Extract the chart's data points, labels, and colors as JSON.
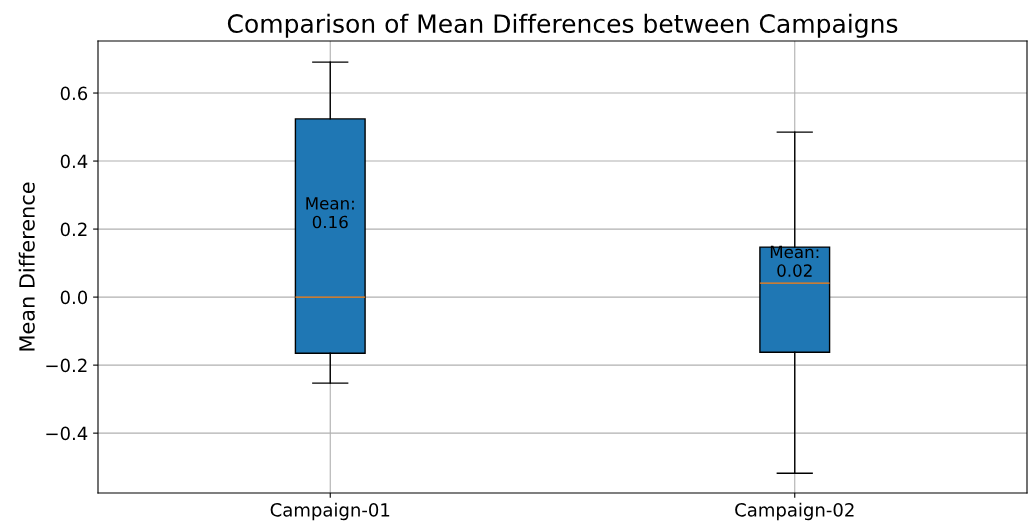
{
  "chart_data": {
    "type": "box",
    "title": "Comparison of Mean Differences between Campaigns",
    "ylabel": "Mean Difference",
    "categories": [
      "Campaign-01",
      "Campaign-02"
    ],
    "boxes": [
      {
        "low": -0.253,
        "q1": -0.165,
        "median": 0.0,
        "q3": 0.524,
        "high": 0.691
      },
      {
        "low": -0.518,
        "q1": -0.162,
        "median": 0.041,
        "q3": 0.147,
        "high": 0.485
      }
    ],
    "color": "#1f77b4",
    "ylim": [
      -0.576,
      0.753
    ],
    "yticks": [
      {
        "value": -0.4,
        "label": "−0.4"
      },
      {
        "value": -0.2,
        "label": "−0.2"
      },
      {
        "value": 0.0,
        "label": "0.0"
      },
      {
        "value": 0.2,
        "label": "0.2"
      },
      {
        "value": 0.4,
        "label": "0.4"
      },
      {
        "value": 0.6,
        "label": "0.6"
      }
    ],
    "grid": true,
    "annotations": [
      "Mean:\n0.16",
      "Mean:\n0.02"
    ]
  }
}
